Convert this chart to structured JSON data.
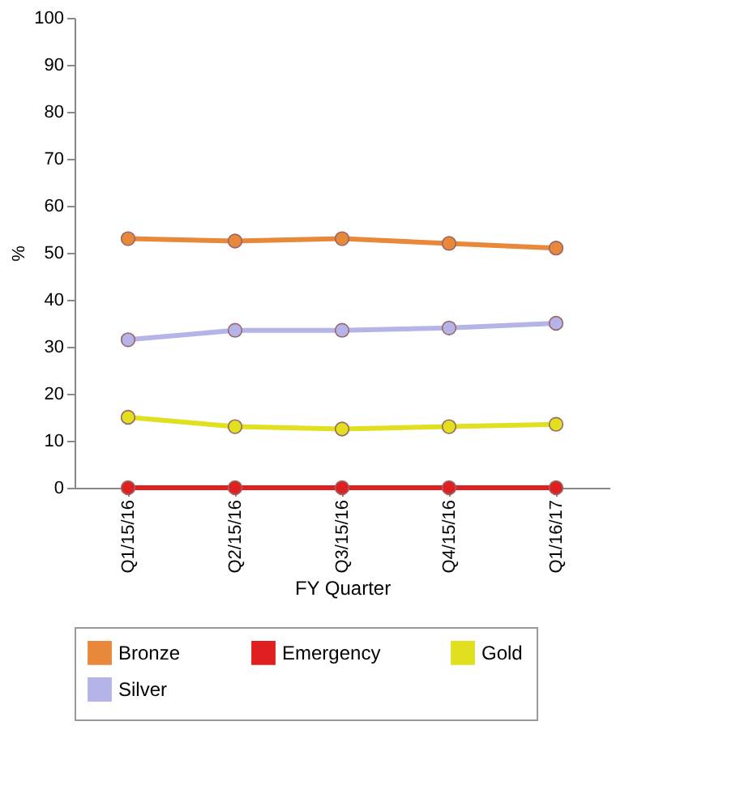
{
  "chart_data": {
    "type": "line",
    "xlabel": "FY Quarter",
    "ylabel": "%",
    "categories": [
      "Q1/15/16",
      "Q2/15/16",
      "Q3/15/16",
      "Q4/15/16",
      "Q1/16/17"
    ],
    "ylim": [
      0,
      100
    ],
    "yticks": [
      0,
      10,
      20,
      30,
      40,
      50,
      60,
      70,
      80,
      90,
      100
    ],
    "grid": false,
    "legend": "bottom",
    "marker": "circle",
    "line_style": "solid",
    "series": [
      {
        "name": "Bronze",
        "color": "#e8883a",
        "values": [
          53,
          52.5,
          53,
          52,
          51
        ]
      },
      {
        "name": "Emergency",
        "color": "#e02020",
        "values": [
          0,
          0,
          0,
          0,
          0
        ]
      },
      {
        "name": "Gold",
        "color": "#e0e020",
        "values": [
          15,
          13,
          12.5,
          13,
          13.5
        ]
      },
      {
        "name": "Silver",
        "color": "#b4b4e8",
        "values": [
          31.5,
          33.5,
          33.5,
          34,
          35
        ]
      }
    ]
  }
}
